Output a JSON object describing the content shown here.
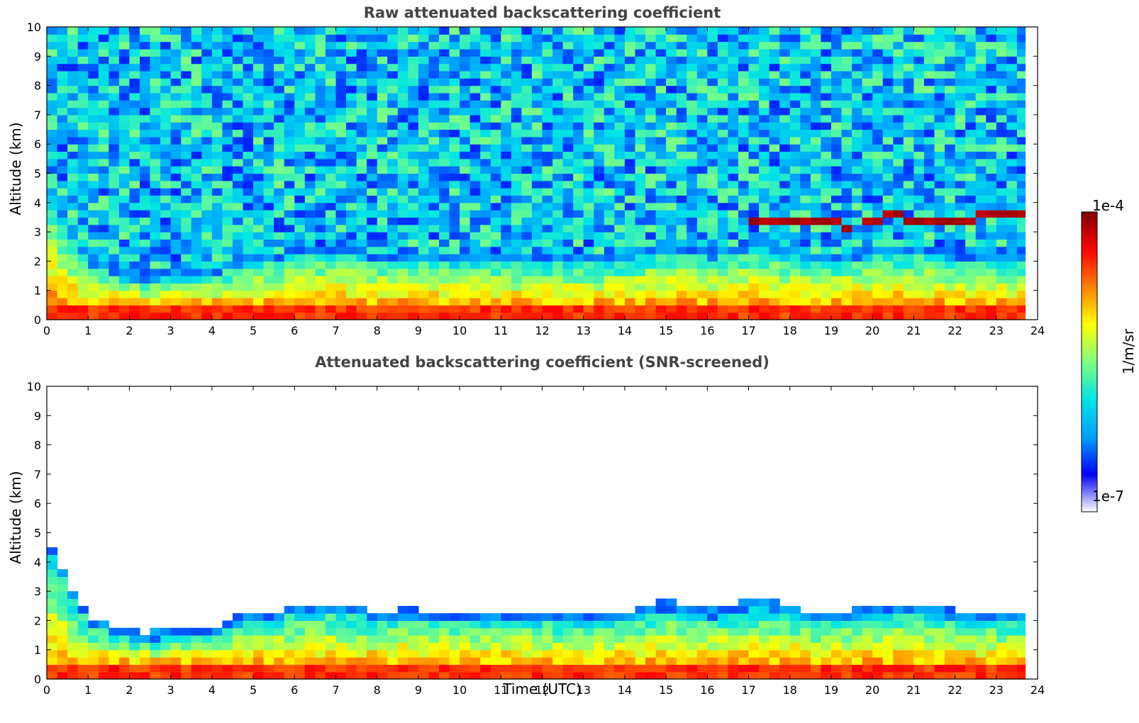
{
  "chart_data": [
    {
      "type": "heatmap",
      "title": "Raw attenuated backscattering coefficient",
      "xlabel": "",
      "ylabel": "Altitude (km)",
      "xlim": [
        0,
        24
      ],
      "ylim": [
        0,
        10
      ],
      "xticks": [
        0,
        1,
        2,
        3,
        4,
        5,
        6,
        7,
        8,
        9,
        10,
        11,
        12,
        13,
        14,
        15,
        16,
        17,
        18,
        19,
        20,
        21,
        22,
        23,
        24
      ],
      "yticks": [
        0,
        1,
        2,
        3,
        4,
        5,
        6,
        7,
        8,
        9,
        10
      ],
      "data_end_time": 23.7,
      "boundary_layer_top_km": [
        [
          0,
          4.6
        ],
        [
          0.5,
          3.0
        ],
        [
          1.0,
          1.9
        ],
        [
          1.5,
          1.6
        ],
        [
          2.0,
          1.4
        ],
        [
          2.5,
          1.3
        ],
        [
          3.0,
          1.5
        ],
        [
          3.5,
          1.5
        ],
        [
          4.0,
          1.4
        ],
        [
          4.5,
          1.8
        ],
        [
          5.0,
          2.0
        ],
        [
          5.5,
          2.0
        ],
        [
          6.0,
          2.2
        ],
        [
          6.5,
          2.3
        ],
        [
          7.0,
          2.3
        ],
        [
          7.5,
          2.2
        ],
        [
          8.0,
          2.0
        ],
        [
          8.5,
          2.1
        ],
        [
          9.0,
          2.1
        ],
        [
          9.5,
          2.0
        ],
        [
          10.0,
          2.0
        ],
        [
          10.5,
          2.0
        ],
        [
          11.0,
          2.0
        ],
        [
          11.5,
          2.0
        ],
        [
          12.0,
          2.0
        ],
        [
          12.5,
          2.0
        ],
        [
          13.0,
          1.9
        ],
        [
          13.5,
          2.0
        ],
        [
          14.0,
          2.0
        ],
        [
          14.5,
          2.2
        ],
        [
          15.0,
          2.4
        ],
        [
          15.5,
          2.3
        ],
        [
          16.0,
          2.1
        ],
        [
          16.5,
          2.2
        ],
        [
          17.0,
          2.4
        ],
        [
          17.5,
          2.4
        ],
        [
          18.0,
          2.2
        ],
        [
          18.5,
          2.0
        ],
        [
          19.0,
          2.0
        ],
        [
          19.5,
          2.1
        ],
        [
          20.0,
          2.2
        ],
        [
          20.5,
          2.3
        ],
        [
          21.0,
          2.3
        ],
        [
          21.5,
          2.2
        ],
        [
          22.0,
          2.1
        ],
        [
          22.5,
          2.0
        ],
        [
          23.0,
          2.0
        ],
        [
          23.7,
          2.0
        ]
      ],
      "cloud_layer_km": [
        [
          17.0,
          3.4
        ],
        [
          17.5,
          3.45
        ],
        [
          18.0,
          3.4
        ],
        [
          18.5,
          3.4
        ],
        [
          19.0,
          3.35
        ],
        [
          19.5,
          3.2
        ],
        [
          20.0,
          3.4
        ],
        [
          20.4,
          3.65
        ],
        [
          20.8,
          3.4
        ],
        [
          21.2,
          3.3
        ],
        [
          21.5,
          3.3
        ],
        [
          22.0,
          3.4
        ],
        [
          22.5,
          3.5
        ],
        [
          23.0,
          3.55
        ],
        [
          23.7,
          3.55
        ]
      ]
    },
    {
      "type": "heatmap",
      "title": "Attenuated backscattering coefficient (SNR-screened)",
      "xlabel": "Time (UTC)",
      "ylabel": "Altitude (km)",
      "xlim": [
        0,
        24
      ],
      "ylim": [
        0,
        10
      ],
      "xticks": [
        0,
        1,
        2,
        3,
        4,
        5,
        6,
        7,
        8,
        9,
        10,
        11,
        12,
        13,
        14,
        15,
        16,
        17,
        18,
        19,
        20,
        21,
        22,
        23,
        24
      ],
      "yticks": [
        0,
        1,
        2,
        3,
        4,
        5,
        6,
        7,
        8,
        9,
        10
      ],
      "data_end_time": 23.7
    }
  ],
  "colorbar": {
    "min_label": "1e-7",
    "max_label": "1e-4",
    "unit": "1/m/sr",
    "colormap": "jet",
    "stops": [
      "#ffffff",
      "#0000ff",
      "#00a0ff",
      "#00e5e5",
      "#80ff80",
      "#ffff00",
      "#ff8000",
      "#ff0000",
      "#800000"
    ]
  }
}
